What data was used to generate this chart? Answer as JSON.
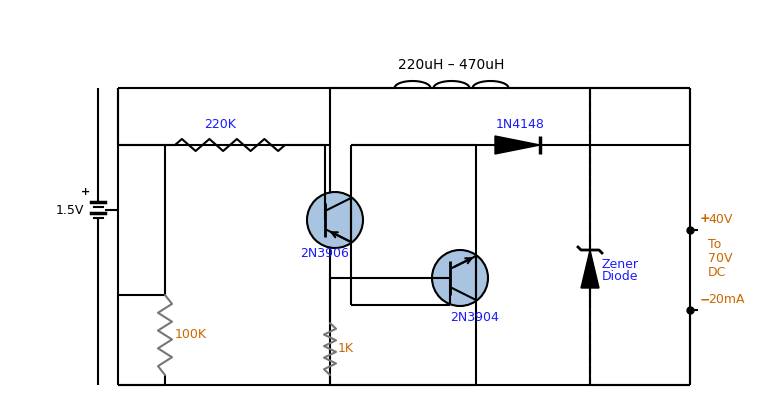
{
  "bg_color": "#ffffff",
  "lc": "#000000",
  "blue_fill": "#a8c4e0",
  "blue_text": "#1a1aff",
  "orange_text": "#cc6600",
  "gray_text": "#999999",
  "figsize": [
    7.68,
    4.09
  ],
  "dpi": 100,
  "label_inductor": "220uH – 470uH",
  "label_220K": "220K",
  "label_100K": "100K",
  "label_1K": "1K",
  "label_2N3906": "2N3906",
  "label_2N3904": "2N3904",
  "label_1N4148": "1N4148",
  "label_zener1": "Zener",
  "label_zener2": "Diode",
  "label_1p5V": "1.5V",
  "label_plus": "+",
  "label_minus": "−",
  "label_40V": "40V",
  "label_To": "To",
  "label_70V": "70V",
  "label_DC": "DC",
  "label_20mA": "20mA",
  "out_plus": "+",
  "out_minus": "−"
}
